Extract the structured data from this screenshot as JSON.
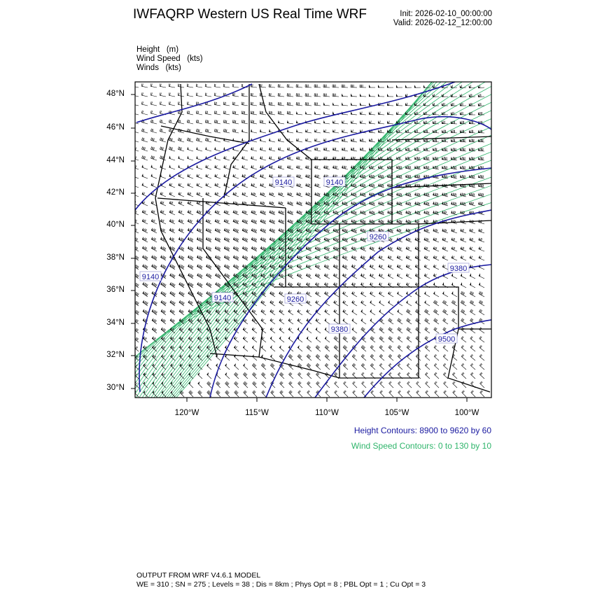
{
  "header": {
    "title": "IWFAQRP Western US Real Time WRF",
    "init": "Init: 2026-02-10_00:00:00",
    "valid": "Valid: 2026-02-12_12:00:00"
  },
  "fields": [
    "Height   (m)",
    "Wind Speed   (kts)",
    "Winds   (kts)"
  ],
  "map": {
    "lat_labels": [
      "48°N",
      "46°N",
      "44°N",
      "42°N",
      "40°N",
      "38°N",
      "36°N",
      "34°N",
      "32°N",
      "30°N"
    ],
    "lon_labels": [
      "120°W",
      "115°W",
      "110°W",
      "105°W",
      "100°W"
    ],
    "height_contour_labels": [
      "9140",
      "9140",
      "9140",
      "9140",
      "9260",
      "9260",
      "9380",
      "9380",
      "9500"
    ],
    "colors": {
      "height": "#1a1aa0",
      "wind_speed": "#2fb56b",
      "borders": "#000000",
      "barbs": "#000000"
    }
  },
  "legend": {
    "height_contours": "Height Contours: 8900 to 9620 by 60",
    "wind_contours": "Wind Speed Contours: 0 to 130 by 10"
  },
  "footer": {
    "line1": "OUTPUT FROM WRF V4.6.1 MODEL",
    "line2": "WE = 310 ; SN = 275 ; Levels = 38 ; Dis = 8km ; Phys Opt = 8 ; PBL Opt = 1 ; Cu Opt = 3"
  }
}
